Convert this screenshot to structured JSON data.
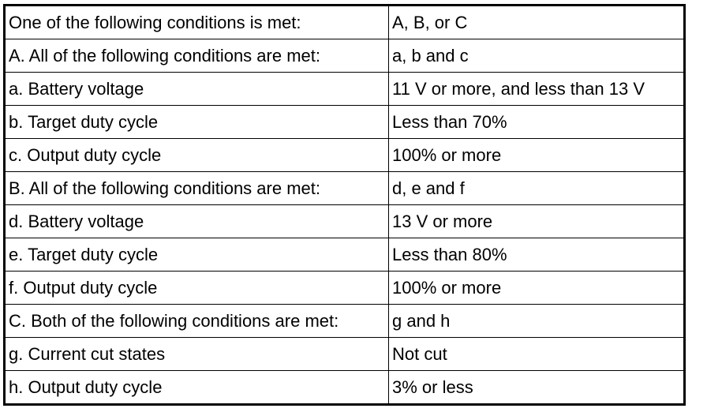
{
  "table": {
    "rows": [
      {
        "condition": "One of the following conditions is met:",
        "value": "A, B, or C"
      },
      {
        "condition": "A. All of the following conditions are met:",
        "value": "a, b and c"
      },
      {
        "condition": "a. Battery voltage",
        "value": "11 V or more, and less than 13 V"
      },
      {
        "condition": "b. Target duty cycle",
        "value": "Less than 70%"
      },
      {
        "condition": "c. Output duty cycle",
        "value": "100% or more"
      },
      {
        "condition": "B. All of the following conditions are met:",
        "value": "d, e and f"
      },
      {
        "condition": "d. Battery voltage",
        "value": "13 V or more"
      },
      {
        "condition": "e. Target duty cycle",
        "value": "Less than 80%"
      },
      {
        "condition": "f. Output duty cycle",
        "value": "100% or more"
      },
      {
        "condition": "C. Both of the following conditions are met:",
        "value": "g and h"
      },
      {
        "condition": "g. Current cut states",
        "value": "Not cut"
      },
      {
        "condition": "h. Output duty cycle",
        "value": "3% or less"
      }
    ]
  }
}
